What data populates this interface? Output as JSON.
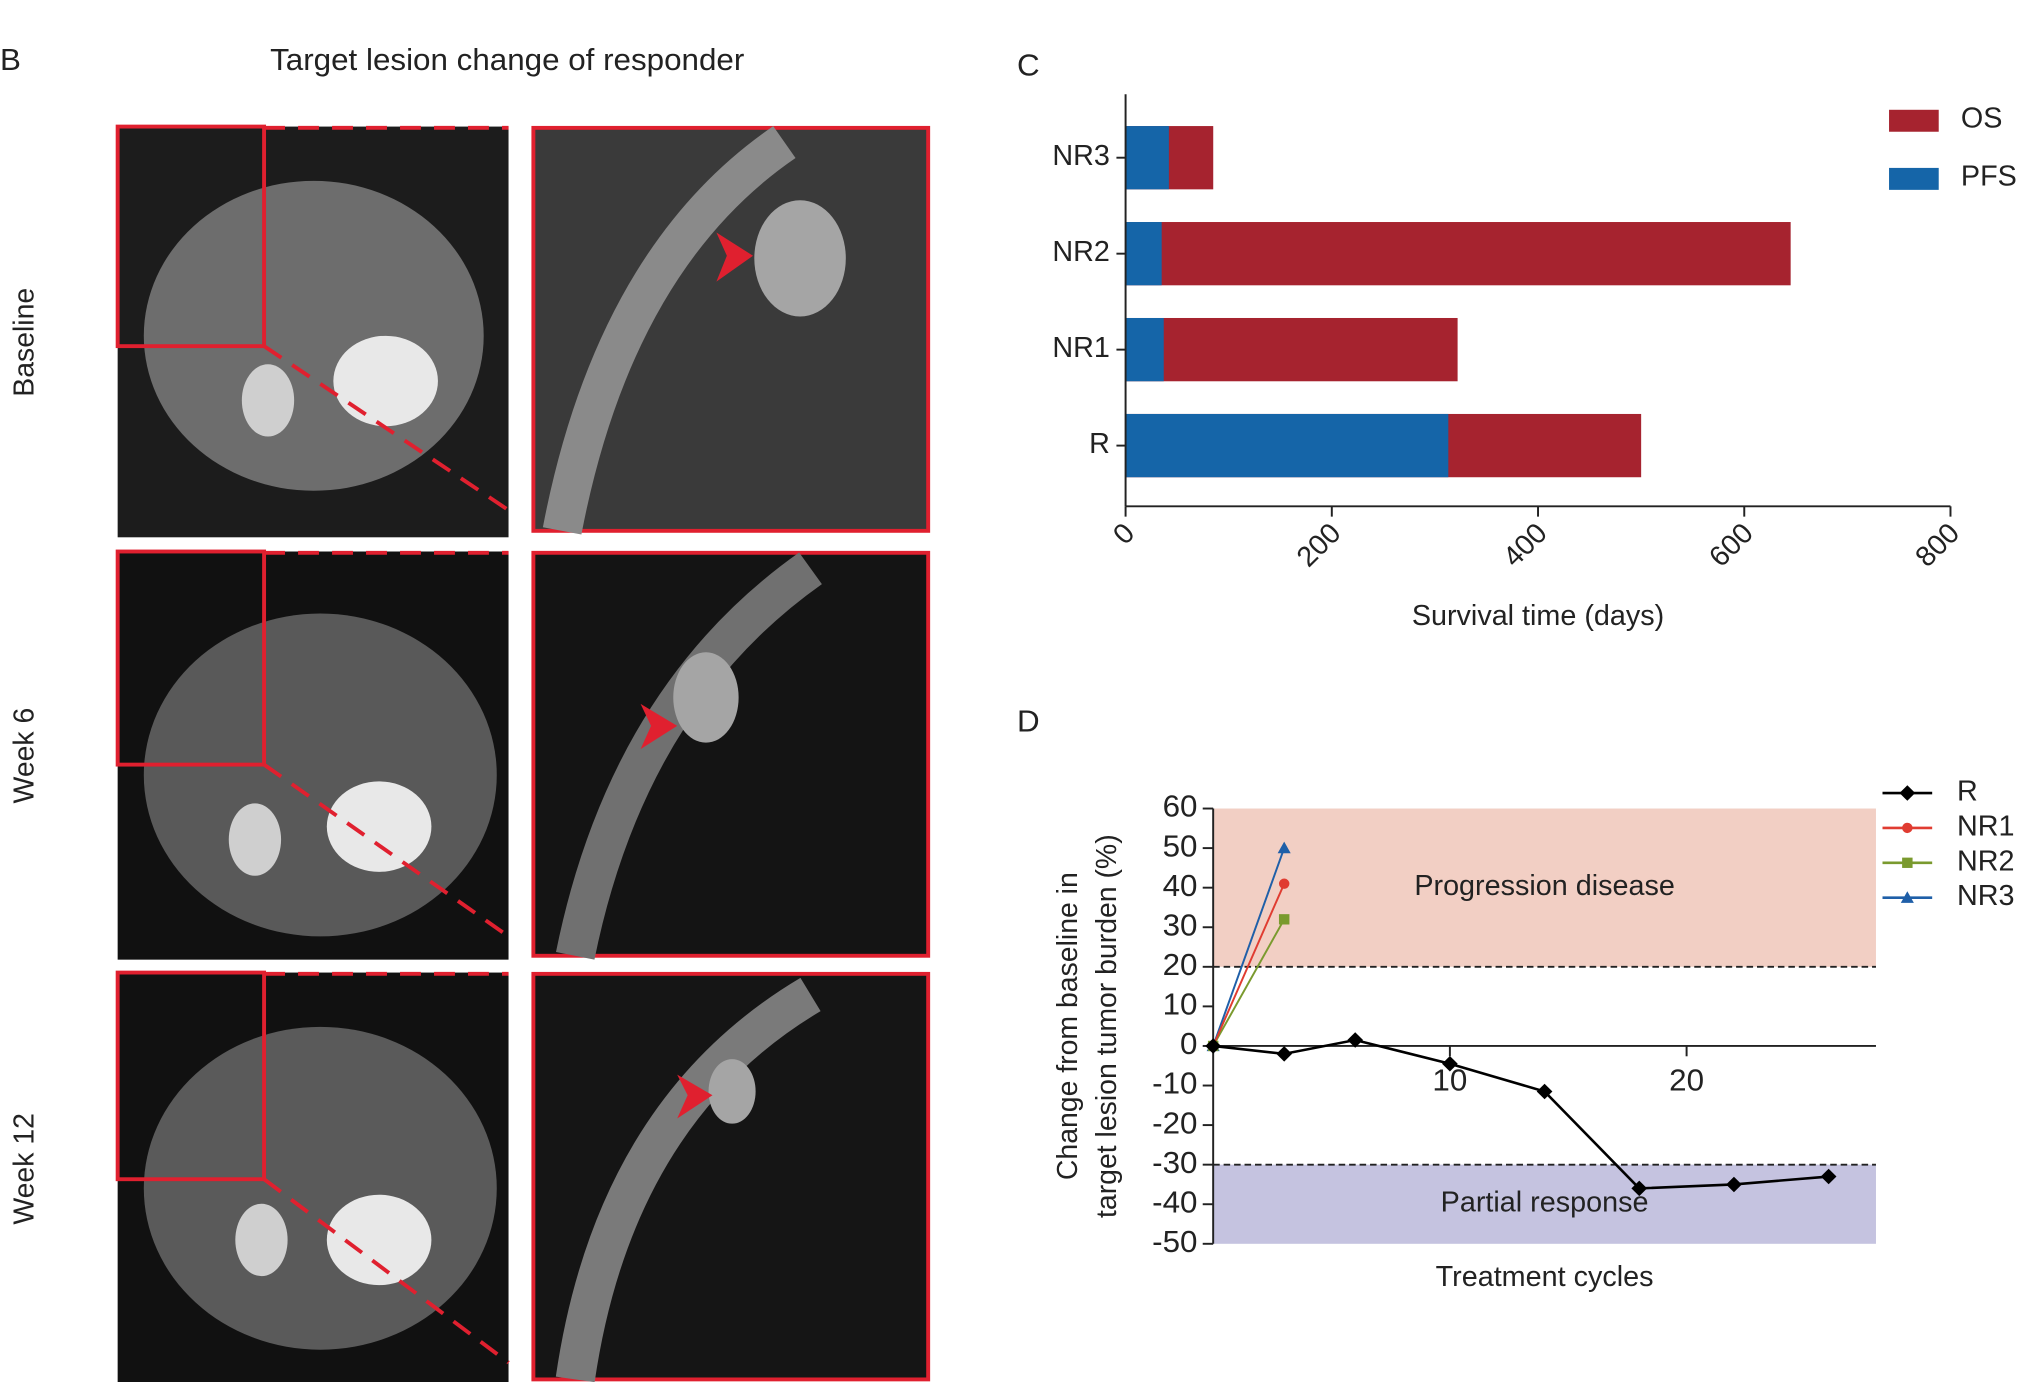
{
  "panel_b": {
    "label": "B",
    "title": "Target lesion change of responder",
    "rows": [
      "Baseline",
      "Week 6",
      "Week 12"
    ]
  },
  "chart_data": [
    {
      "type": "bar",
      "orientation": "horizontal",
      "barmode": "overlay",
      "label": "C",
      "categories": [
        "R",
        "NR1",
        "NR2",
        "NR3"
      ],
      "series": [
        {
          "name": "OS",
          "color": "#a6232f",
          "values": [
            500,
            322,
            645,
            85
          ]
        },
        {
          "name": "PFS",
          "color": "#1565a8",
          "values": [
            313,
            37,
            35,
            42
          ]
        }
      ],
      "xlim": [
        0,
        800
      ],
      "xticks": [
        0,
        200,
        400,
        600,
        800
      ],
      "xlabel": "Survival time (days)",
      "legend": "top-right"
    },
    {
      "type": "line",
      "label": "D",
      "series": [
        {
          "name": "R",
          "color": "#000000",
          "marker": "diamond",
          "x": [
            0,
            3,
            6,
            10,
            14,
            18,
            22,
            26
          ],
          "values": [
            0,
            -2,
            1.5,
            -4.5,
            -11.5,
            -36,
            -35,
            -33
          ]
        },
        {
          "name": "NR1",
          "color": "#e03c31",
          "marker": "circle",
          "x": [
            0,
            3
          ],
          "values": [
            0,
            41
          ]
        },
        {
          "name": "NR2",
          "color": "#7a9a2e",
          "marker": "square",
          "x": [
            0,
            3
          ],
          "values": [
            0,
            32
          ]
        },
        {
          "name": "NR3",
          "color": "#1f5fa8",
          "marker": "triangle",
          "x": [
            0,
            3
          ],
          "values": [
            0,
            50
          ]
        }
      ],
      "xlim": [
        0,
        28
      ],
      "xticks": [
        10,
        20
      ],
      "ylim": [
        -50,
        60
      ],
      "yticks": [
        -50,
        -40,
        -30,
        -20,
        -10,
        0,
        10,
        20,
        30,
        40,
        50,
        60
      ],
      "xlabel": "Treatment cycles",
      "ylabel": [
        "Change from baseline in",
        "target lesion tumor burden (%)"
      ],
      "bands": [
        {
          "from": 20,
          "to": 60,
          "label": "Progression disease",
          "color": "#f2cfc4"
        },
        {
          "from": -30,
          "to": -50,
          "label": "Partial response",
          "color": "#c5c3e0"
        }
      ],
      "legend": "top-right"
    }
  ]
}
